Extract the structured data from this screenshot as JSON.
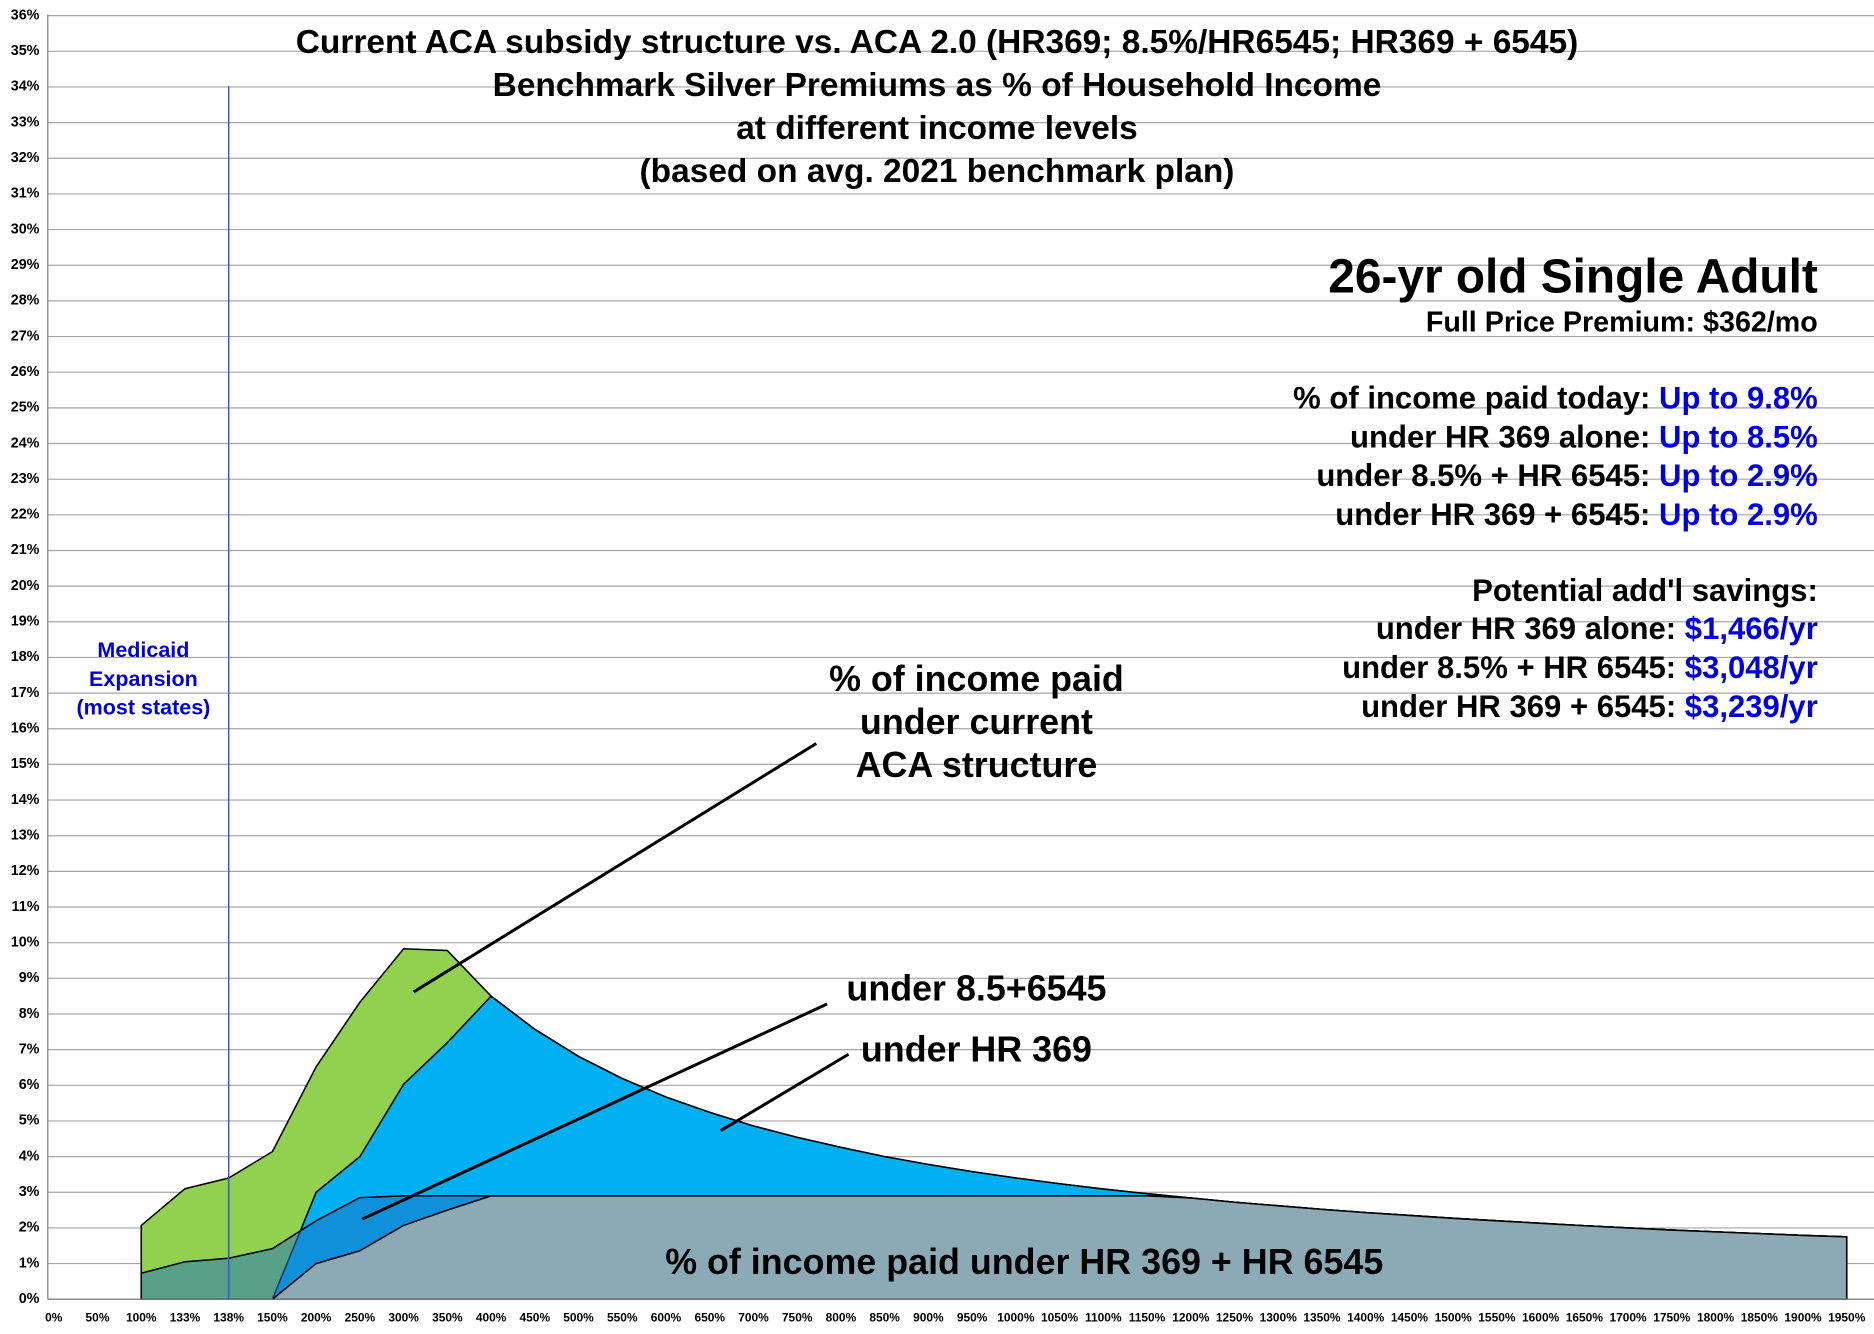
{
  "chart_data": {
    "type": "area",
    "title": [
      "Current ACA subsidy structure vs. ACA 2.0 (HR369; 8.5%/HR6545; HR369 + 6545)",
      "Benchmark Silver Premiums as % of Household Income",
      "at different income levels",
      "(based on avg. 2021 benchmark plan)"
    ],
    "categories": [
      "0%",
      "50%",
      "100%",
      "133%",
      "138%",
      "150%",
      "200%",
      "250%",
      "300%",
      "350%",
      "400%",
      "450%",
      "500%",
      "550%",
      "600%",
      "650%",
      "700%",
      "750%",
      "800%",
      "850%",
      "900%",
      "950%",
      "1000%",
      "1050%",
      "1100%",
      "1150%",
      "1200%",
      "1250%",
      "1300%",
      "1350%",
      "1400%",
      "1450%",
      "1500%",
      "1550%",
      "1600%",
      "1650%",
      "1700%",
      "1750%",
      "1800%",
      "1850%",
      "1900%",
      "1950%"
    ],
    "series": [
      {
        "color": "#92d050",
        "opacity": 1,
        "values": [
          null,
          null,
          2.07,
          3.1,
          3.4,
          4.14,
          6.52,
          8.33,
          9.83,
          9.78,
          8.5,
          7.57,
          6.81,
          6.19,
          5.67,
          5.24,
          4.86,
          4.54,
          4.26,
          4.0,
          3.78,
          3.58,
          3.4,
          3.24,
          3.09,
          2.96,
          2.84,
          2.72,
          2.62,
          2.52,
          2.43,
          2.35,
          2.27,
          2.2,
          2.13,
          2.06,
          2.0,
          1.94,
          1.89,
          1.84,
          1.79,
          1.75
        ]
      },
      {
        "color": "#00b0f0",
        "opacity": 1,
        "values": [
          null,
          null,
          null,
          null,
          null,
          0,
          3.0,
          4.0,
          6.03,
          7.2,
          8.5,
          7.57,
          6.81,
          6.19,
          5.67,
          5.24,
          4.86,
          4.54,
          4.26,
          4.0,
          3.78,
          3.58,
          3.4,
          3.24,
          3.09,
          2.96,
          2.84,
          2.72,
          2.62,
          2.52,
          2.43,
          2.35,
          2.27,
          2.2,
          2.13,
          2.06,
          2.0,
          1.94,
          1.89,
          1.84,
          1.79,
          1.75
        ]
      },
      {
        "color": "#1f6fc0",
        "opacity": 0.5,
        "values": [
          null,
          null,
          0.73,
          1.05,
          1.15,
          1.42,
          2.2,
          2.85,
          2.9,
          2.9,
          2.9,
          2.9,
          2.9,
          2.9,
          2.9,
          2.9,
          2.9,
          2.9,
          2.9,
          2.9,
          2.9,
          2.9,
          2.9,
          2.9,
          2.9,
          2.9,
          2.84,
          2.72,
          2.62,
          2.52,
          2.43,
          2.35,
          2.27,
          2.2,
          2.13,
          2.06,
          2.0,
          1.94,
          1.89,
          1.84,
          1.79,
          1.75
        ]
      },
      {
        "color": "#97adb3",
        "opacity": 0.92,
        "values": [
          null,
          null,
          null,
          null,
          null,
          0,
          1.0,
          1.36,
          2.07,
          2.5,
          2.9,
          2.9,
          2.9,
          2.9,
          2.9,
          2.9,
          2.9,
          2.9,
          2.9,
          2.9,
          2.9,
          2.9,
          2.9,
          2.9,
          2.9,
          2.9,
          2.84,
          2.72,
          2.62,
          2.52,
          2.43,
          2.35,
          2.27,
          2.2,
          2.13,
          2.06,
          2.0,
          1.94,
          1.89,
          1.84,
          1.79,
          1.75
        ]
      }
    ],
    "ylim": [
      0,
      36
    ],
    "yticks": [
      {
        "value": 0,
        "label": "0%"
      },
      {
        "value": 1,
        "label": "1%"
      },
      {
        "value": 2,
        "label": "2%"
      },
      {
        "value": 3,
        "label": "3%"
      },
      {
        "value": 4,
        "label": "4%"
      },
      {
        "value": 5,
        "label": "5%"
      },
      {
        "value": 6,
        "label": "6%"
      },
      {
        "value": 7,
        "label": "7%"
      },
      {
        "value": 8,
        "label": "8%"
      },
      {
        "value": 9,
        "label": "9%"
      },
      {
        "value": 10,
        "label": "10%"
      },
      {
        "value": 11,
        "label": "11%"
      },
      {
        "value": 12,
        "label": "12%"
      },
      {
        "value": 13,
        "label": "13%"
      },
      {
        "value": 14,
        "label": "14%"
      },
      {
        "value": 15,
        "label": "15%"
      },
      {
        "value": 16,
        "label": "16%"
      },
      {
        "value": 17,
        "label": "17%"
      },
      {
        "value": 18,
        "label": "18%"
      },
      {
        "value": 19,
        "label": "19%"
      },
      {
        "value": 20,
        "label": "20%"
      },
      {
        "value": 21,
        "label": "21%"
      },
      {
        "value": 22,
        "label": "22%"
      },
      {
        "value": 23,
        "label": "23%"
      },
      {
        "value": 24,
        "label": "24%"
      },
      {
        "value": 25,
        "label": "25%"
      },
      {
        "value": 26,
        "label": "26%"
      },
      {
        "value": 27,
        "label": "27%"
      },
      {
        "value": 28,
        "label": "28%"
      },
      {
        "value": 29,
        "label": "29%"
      },
      {
        "value": 30,
        "label": "30%"
      },
      {
        "value": 31,
        "label": "31%"
      },
      {
        "value": 32,
        "label": "32%"
      },
      {
        "value": 33,
        "label": "33%"
      },
      {
        "value": 34,
        "label": "34%"
      },
      {
        "value": 35,
        "label": "35%"
      },
      {
        "value": 36,
        "label": "36%"
      }
    ],
    "grid": true,
    "medicaid_note": [
      "Medicaid",
      "Expansion",
      "(most states)"
    ],
    "annotations": [
      [
        "% of income paid",
        "under current",
        "ACA structure"
      ],
      [
        "under 8.5+6545"
      ],
      [
        "under HR 369"
      ],
      [
        "% of income paid under HR 369 + HR 6545"
      ]
    ],
    "info": {
      "heading": "26-yr old Single Adult",
      "subheading": "Full Price Premium: $362/mo",
      "rows": [
        {
          "label": "% of income paid today: ",
          "value": "Up to 9.8%"
        },
        {
          "label": "under HR 369 alone: ",
          "value": "Up to 8.5%"
        },
        {
          "label": "under 8.5% + HR 6545: ",
          "value": "Up to 2.9%"
        },
        {
          "label": "under HR 369 + 6545: ",
          "value": "Up to 2.9%"
        }
      ],
      "savings_heading": "Potential add'l savings:",
      "savings_rows": [
        {
          "label": "under HR 369 alone: ",
          "value": "$1,466/yr"
        },
        {
          "label": "under 8.5% + HR 6545: ",
          "value": "$3,048/yr"
        },
        {
          "label": "under HR 369 + 6545: ",
          "value": "$3,239/yr"
        }
      ]
    }
  }
}
